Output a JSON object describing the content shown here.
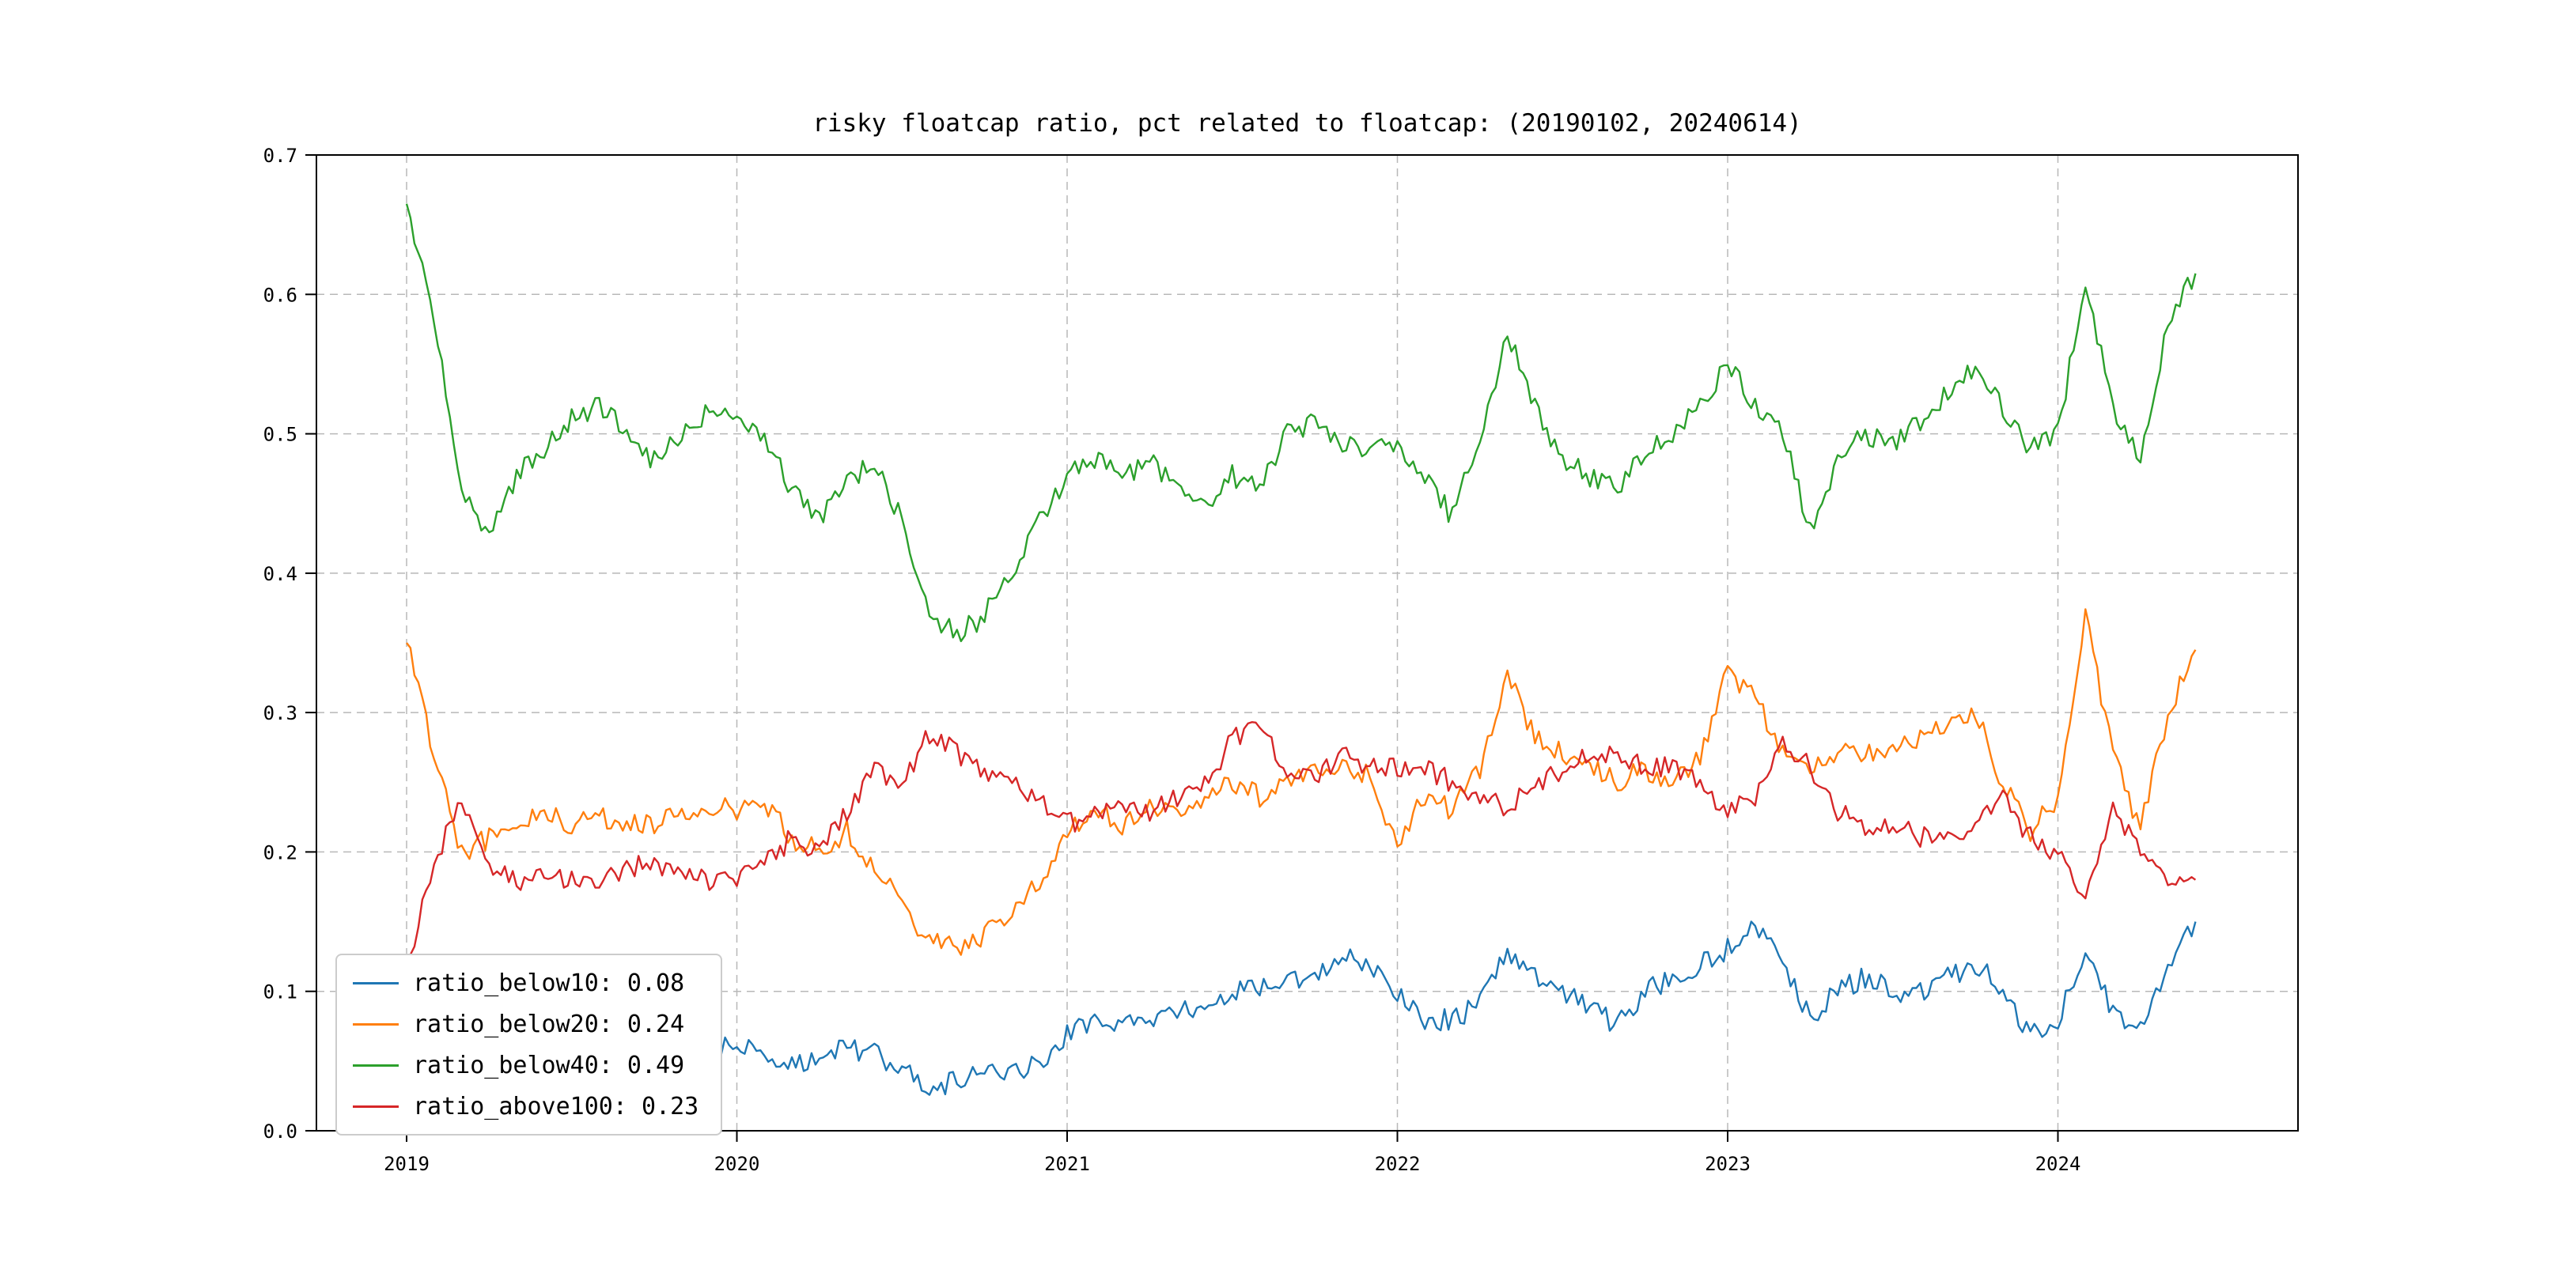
{
  "page": {
    "background": "#ffffff"
  },
  "chart_data": {
    "type": "line",
    "title": "risky floatcap ratio, pct related to floatcap: (20190102, 20240614)",
    "xlabel": "",
    "ylabel": "",
    "x_axis": {
      "min": 2018.727,
      "max": 2024.727,
      "ticks": [
        2019,
        2020,
        2021,
        2022,
        2023,
        2024
      ],
      "tick_labels": [
        "2019",
        "2020",
        "2021",
        "2022",
        "2023",
        "2024"
      ]
    },
    "y_axis": {
      "min": 0.0,
      "max": 0.7,
      "ticks": [
        0.0,
        0.1,
        0.2,
        0.3,
        0.4,
        0.5,
        0.6,
        0.7
      ],
      "tick_labels": [
        "0.0",
        "0.1",
        "0.2",
        "0.3",
        "0.4",
        "0.5",
        "0.6",
        "0.7"
      ]
    },
    "grid": {
      "visible": true,
      "style": "dashed",
      "color": "#b8b8b8"
    },
    "x_sampling": {
      "start_year": 2019,
      "start_month": 1,
      "step_months": 1
    },
    "date_range": {
      "start": "20190102",
      "end": "20240614"
    },
    "legend": {
      "position": "lower left"
    },
    "series": [
      {
        "name": "ratio_below10",
        "legend_label": "ratio_below10: 0.08",
        "color": "#1f77b4",
        "values": [
          0.1,
          0.085,
          0.075,
          0.07,
          0.08,
          0.08,
          0.075,
          0.07,
          0.065,
          0.06,
          0.06,
          0.06,
          0.06,
          0.055,
          0.05,
          0.05,
          0.06,
          0.055,
          0.045,
          0.03,
          0.035,
          0.04,
          0.04,
          0.05,
          0.07,
          0.08,
          0.075,
          0.08,
          0.085,
          0.09,
          0.1,
          0.1,
          0.11,
          0.11,
          0.125,
          0.12,
          0.1,
          0.08,
          0.08,
          0.09,
          0.13,
          0.11,
          0.1,
          0.09,
          0.075,
          0.1,
          0.11,
          0.12,
          0.13,
          0.15,
          0.12,
          0.08,
          0.1,
          0.11,
          0.1,
          0.1,
          0.11,
          0.12,
          0.1,
          0.07,
          0.08,
          0.13,
          0.085,
          0.075,
          0.12,
          0.15
        ]
      },
      {
        "name": "ratio_below20",
        "legend_label": "ratio_below20: 0.24",
        "color": "#ff7f0e",
        "values": [
          0.35,
          0.27,
          0.2,
          0.21,
          0.22,
          0.23,
          0.22,
          0.225,
          0.22,
          0.22,
          0.23,
          0.235,
          0.23,
          0.235,
          0.21,
          0.2,
          0.215,
          0.19,
          0.165,
          0.135,
          0.13,
          0.14,
          0.16,
          0.18,
          0.215,
          0.23,
          0.22,
          0.23,
          0.23,
          0.24,
          0.25,
          0.24,
          0.25,
          0.26,
          0.26,
          0.255,
          0.205,
          0.24,
          0.23,
          0.26,
          0.33,
          0.28,
          0.27,
          0.26,
          0.25,
          0.26,
          0.25,
          0.27,
          0.33,
          0.31,
          0.27,
          0.26,
          0.27,
          0.27,
          0.275,
          0.28,
          0.29,
          0.3,
          0.25,
          0.215,
          0.24,
          0.37,
          0.27,
          0.215,
          0.3,
          0.345
        ]
      },
      {
        "name": "ratio_below40",
        "legend_label": "ratio_below40: 0.49",
        "color": "#2ca02c",
        "values": [
          0.665,
          0.58,
          0.46,
          0.425,
          0.47,
          0.49,
          0.51,
          0.52,
          0.5,
          0.48,
          0.5,
          0.515,
          0.51,
          0.5,
          0.46,
          0.44,
          0.47,
          0.475,
          0.44,
          0.37,
          0.355,
          0.37,
          0.4,
          0.44,
          0.47,
          0.48,
          0.47,
          0.48,
          0.46,
          0.45,
          0.47,
          0.46,
          0.5,
          0.51,
          0.49,
          0.49,
          0.49,
          0.47,
          0.44,
          0.5,
          0.57,
          0.52,
          0.48,
          0.47,
          0.46,
          0.49,
          0.5,
          0.52,
          0.55,
          0.52,
          0.5,
          0.43,
          0.48,
          0.5,
          0.49,
          0.51,
          0.53,
          0.55,
          0.52,
          0.49,
          0.5,
          0.61,
          0.52,
          0.48,
          0.58,
          0.615
        ]
      },
      {
        "name": "ratio_above100",
        "legend_label": "ratio_above100: 0.23",
        "color": "#d62728",
        "values": [
          0.12,
          0.19,
          0.24,
          0.19,
          0.18,
          0.18,
          0.18,
          0.18,
          0.19,
          0.19,
          0.18,
          0.18,
          0.18,
          0.19,
          0.21,
          0.2,
          0.23,
          0.26,
          0.25,
          0.285,
          0.27,
          0.26,
          0.25,
          0.24,
          0.22,
          0.225,
          0.23,
          0.23,
          0.24,
          0.25,
          0.28,
          0.29,
          0.26,
          0.25,
          0.27,
          0.26,
          0.26,
          0.26,
          0.25,
          0.24,
          0.23,
          0.25,
          0.26,
          0.27,
          0.27,
          0.26,
          0.26,
          0.25,
          0.23,
          0.24,
          0.28,
          0.26,
          0.23,
          0.22,
          0.22,
          0.21,
          0.21,
          0.22,
          0.24,
          0.21,
          0.2,
          0.165,
          0.235,
          0.2,
          0.18,
          0.18
        ]
      }
    ]
  }
}
